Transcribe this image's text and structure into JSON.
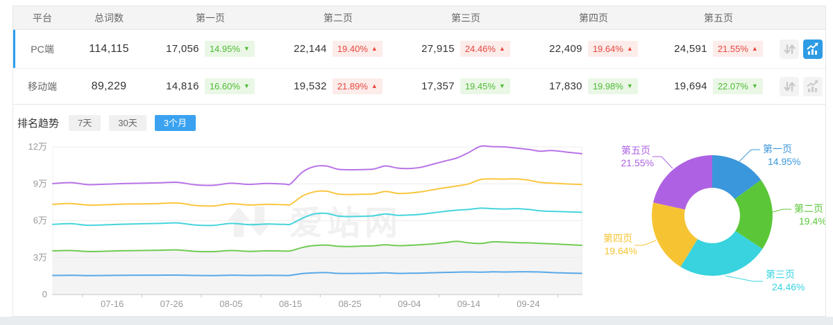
{
  "table": {
    "columns": [
      "平台",
      "总词数",
      "第一页",
      "第二页",
      "第三页",
      "第四页",
      "第五页"
    ],
    "rows": [
      {
        "platform": "PC端",
        "total": "114,115",
        "active": true,
        "chart_active": true,
        "pages": [
          {
            "value": "17,056",
            "pct": "14.95%",
            "dir": "down"
          },
          {
            "value": "22,144",
            "pct": "19.40%",
            "dir": "up"
          },
          {
            "value": "27,915",
            "pct": "24.46%",
            "dir": "up"
          },
          {
            "value": "22,409",
            "pct": "19.64%",
            "dir": "up"
          },
          {
            "value": "24,591",
            "pct": "21.55%",
            "dir": "up"
          }
        ]
      },
      {
        "platform": "移动端",
        "total": "89,229",
        "active": false,
        "chart_active": false,
        "pages": [
          {
            "value": "14,816",
            "pct": "16.60%",
            "dir": "down"
          },
          {
            "value": "19,532",
            "pct": "21.89%",
            "dir": "up"
          },
          {
            "value": "17,357",
            "pct": "19.45%",
            "dir": "down"
          },
          {
            "value": "17,830",
            "pct": "19.98%",
            "dir": "down"
          },
          {
            "value": "19,694",
            "pct": "22.07%",
            "dir": "down"
          }
        ]
      }
    ]
  },
  "trend": {
    "label": "排名趋势",
    "tabs": [
      {
        "label": "7天",
        "active": false
      },
      {
        "label": "30天",
        "active": false
      },
      {
        "label": "3个月",
        "active": true
      }
    ]
  },
  "watermark": {
    "text": "爱站网"
  },
  "colors": {
    "accent_blue": "#3aa2f0",
    "icon_active_blue": "#2e9be5",
    "row_highlight": "#2b9ff0",
    "badge_up_red": "#e8473f",
    "badge_up_bg": "#fcecea",
    "badge_down_green": "#4fbb35",
    "badge_down_bg": "#eaf7e6",
    "grid_line": "#ececec",
    "axis_line": "#c6c6c6",
    "axis_text": "#999999"
  },
  "chart_data": [
    {
      "type": "line",
      "title": "排名趋势",
      "y_axis": {
        "ticks": [
          "0",
          "3万",
          "6万",
          "9万",
          "12万"
        ],
        "tick_values_wan": [
          0,
          3,
          6,
          9,
          12
        ],
        "max_wan": 12,
        "unit": "万"
      },
      "x_axis": {
        "labels": [
          "07-16",
          "07-26",
          "08-05",
          "08-15",
          "08-25",
          "09-04",
          "09-14",
          "09-24"
        ],
        "label_days": [
          10,
          20,
          30,
          40,
          50,
          60,
          70,
          80
        ],
        "tick_days": [
          5,
          15,
          25,
          35,
          45,
          55,
          65,
          75,
          85
        ],
        "day_span": 89
      },
      "grid": true,
      "legend": false,
      "days": [
        0,
        3,
        6,
        9,
        12,
        15,
        18,
        21,
        24,
        27,
        30,
        33,
        36,
        39,
        40,
        42,
        44,
        46,
        48,
        50,
        52,
        54,
        56,
        58,
        60,
        62,
        64,
        66,
        68,
        70,
        72,
        74,
        76,
        78,
        80,
        82,
        84,
        87,
        89
      ],
      "series": [
        {
          "name": "series-1-blue",
          "color": "#57a8e8",
          "values_wan": [
            1.55,
            1.56,
            1.54,
            1.55,
            1.56,
            1.57,
            1.57,
            1.58,
            1.55,
            1.54,
            1.57,
            1.55,
            1.56,
            1.55,
            1.56,
            1.7,
            1.76,
            1.78,
            1.72,
            1.71,
            1.72,
            1.73,
            1.76,
            1.72,
            1.73,
            1.74,
            1.77,
            1.8,
            1.82,
            1.83,
            1.82,
            1.84,
            1.83,
            1.84,
            1.85,
            1.83,
            1.78,
            1.74,
            1.72
          ]
        },
        {
          "name": "series-2-green",
          "color": "#6fcb52",
          "area_fill": "#f4f4f4",
          "values_wan": [
            3.55,
            3.58,
            3.5,
            3.52,
            3.56,
            3.58,
            3.6,
            3.62,
            3.51,
            3.49,
            3.58,
            3.51,
            3.55,
            3.54,
            3.55,
            3.82,
            3.98,
            4.02,
            3.92,
            3.9,
            3.94,
            3.96,
            4.04,
            3.97,
            4.0,
            4.05,
            4.12,
            4.22,
            4.32,
            4.2,
            4.15,
            4.28,
            4.26,
            4.22,
            4.2,
            4.16,
            4.12,
            4.05,
            4.0
          ]
        },
        {
          "name": "series-3-cyan",
          "color": "#45d4dc",
          "values_wan": [
            5.7,
            5.76,
            5.63,
            5.67,
            5.72,
            5.75,
            5.78,
            5.82,
            5.65,
            5.62,
            5.78,
            5.68,
            5.73,
            5.7,
            5.72,
            6.2,
            6.55,
            6.6,
            6.38,
            6.34,
            6.36,
            6.4,
            6.55,
            6.44,
            6.46,
            6.52,
            6.64,
            6.76,
            6.86,
            6.92,
            7.02,
            6.98,
            6.95,
            6.98,
            6.92,
            6.8,
            6.76,
            6.72,
            6.68
          ]
        },
        {
          "name": "series-4-yellow",
          "color": "#fac63e",
          "values_wan": [
            7.33,
            7.4,
            7.27,
            7.3,
            7.35,
            7.37,
            7.4,
            7.44,
            7.24,
            7.2,
            7.38,
            7.28,
            7.33,
            7.3,
            7.32,
            8.0,
            8.35,
            8.4,
            8.17,
            8.13,
            8.15,
            8.18,
            8.38,
            8.22,
            8.25,
            8.35,
            8.52,
            8.68,
            8.82,
            9.0,
            9.35,
            9.4,
            9.38,
            9.4,
            9.3,
            9.12,
            9.05,
            8.98,
            8.95
          ]
        },
        {
          "name": "series-5-purple",
          "color": "#b873e8",
          "values_wan": [
            9.02,
            9.1,
            8.93,
            8.97,
            9.02,
            9.05,
            9.08,
            9.12,
            8.92,
            8.88,
            9.05,
            8.95,
            9.03,
            8.98,
            9.0,
            9.95,
            10.4,
            10.45,
            10.18,
            10.14,
            10.16,
            10.2,
            10.45,
            10.28,
            10.24,
            10.35,
            10.6,
            10.85,
            11.1,
            11.55,
            12.05,
            12.02,
            12.0,
            11.9,
            11.8,
            11.65,
            11.7,
            11.55,
            11.45
          ]
        }
      ]
    },
    {
      "type": "pie",
      "donut": true,
      "start_angle": "top",
      "direction": "clockwise",
      "slices": [
        {
          "label": "第一页",
          "pct_label": "14.95%",
          "value": 14.95,
          "color": "#3b97db"
        },
        {
          "label": "第二页",
          "pct_label": "19.4%",
          "value": 19.4,
          "color": "#5bc738"
        },
        {
          "label": "第三页",
          "pct_label": "24.46%",
          "value": 24.46,
          "color": "#38d3de"
        },
        {
          "label": "第四页",
          "pct_label": "19.64%",
          "value": 19.64,
          "color": "#f6c433"
        },
        {
          "label": "第五页",
          "pct_label": "21.55%",
          "value": 21.55,
          "color": "#ae62e3"
        }
      ]
    }
  ]
}
